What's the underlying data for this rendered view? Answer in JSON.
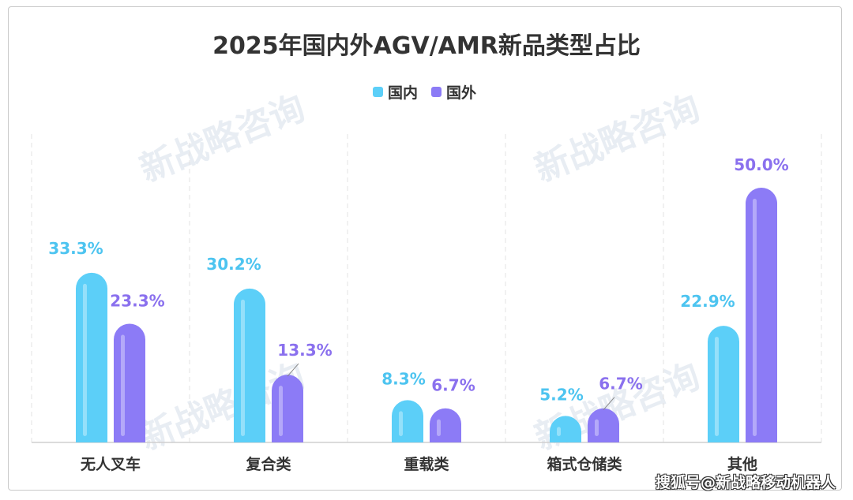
{
  "chart_data": {
    "type": "bar",
    "title": "2025年国内外AGV/AMR新品类型占比",
    "categories": [
      "无人叉车",
      "复合类",
      "重载类",
      "箱式仓储类",
      "其他"
    ],
    "series": [
      {
        "name": "国内",
        "color": "#5ccff8",
        "label_color": "#4dc4f0",
        "values": [
          33.3,
          30.2,
          8.3,
          5.2,
          22.9
        ],
        "labels": [
          "33.3%",
          "30.2%",
          "8.3%",
          "5.2%",
          "22.9%"
        ]
      },
      {
        "name": "国外",
        "color": "#8c7bf6",
        "label_color": "#8a70ee",
        "values": [
          23.3,
          13.3,
          6.7,
          6.7,
          50.0
        ],
        "labels": [
          "23.3%",
          "13.3%",
          "6.7%",
          "6.7%",
          "50.0%"
        ]
      }
    ],
    "ylim": [
      0,
      50
    ],
    "xlabel": "",
    "ylabel": "",
    "legend": "top-center",
    "grid": false
  },
  "watermark": "新战略咨询",
  "credit": "搜狐号@新战略移动机器人"
}
